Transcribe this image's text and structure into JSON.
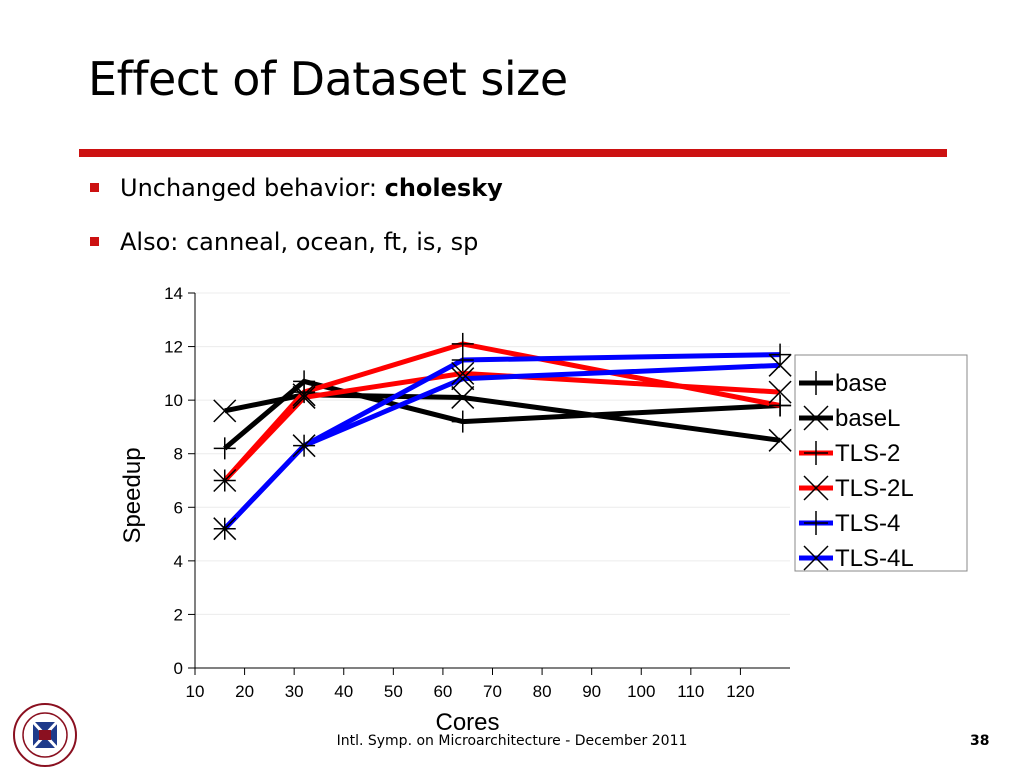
{
  "slide": {
    "title": "Effect of Dataset size",
    "bullet1_prefix": "Unchanged behavior: ",
    "bullet1_bold": "cholesky",
    "bullet2": "Also: canneal, ocean, ft, is, sp",
    "footer": "Intl. Symp. on Microarchitecture - December 2011",
    "page_number": "38",
    "colors": {
      "accent": "#cc1111",
      "black": "#000000",
      "red": "#ff0000",
      "blue": "#0000ff"
    }
  },
  "chart_data": {
    "type": "line",
    "title": "",
    "xlabel": "Cores",
    "ylabel": "Speedup",
    "xlim": [
      10,
      130
    ],
    "ylim": [
      0,
      14
    ],
    "xticks": [
      10,
      20,
      30,
      40,
      50,
      60,
      70,
      80,
      90,
      100,
      110,
      120
    ],
    "yticks": [
      0,
      2,
      4,
      6,
      8,
      10,
      12,
      14
    ],
    "grid": true,
    "legend_position": "right",
    "x": [
      16,
      32,
      64,
      128
    ],
    "series": [
      {
        "name": "base",
        "color": "#000000",
        "marker": "plus",
        "values": [
          8.2,
          10.7,
          9.2,
          9.8
        ]
      },
      {
        "name": "baseL",
        "color": "#000000",
        "marker": "cross",
        "values": [
          9.6,
          10.2,
          10.1,
          8.5
        ]
      },
      {
        "name": "TLS-2",
        "color": "#ff0000",
        "marker": "plus",
        "values": [
          7.0,
          10.3,
          12.1,
          9.8
        ]
      },
      {
        "name": "TLS-2L",
        "color": "#ff0000",
        "marker": "cross",
        "values": [
          7.0,
          10.1,
          11.0,
          10.3
        ]
      },
      {
        "name": "TLS-4",
        "color": "#0000ff",
        "marker": "plus",
        "values": [
          5.2,
          8.3,
          11.5,
          11.7
        ]
      },
      {
        "name": "TLS-4L",
        "color": "#0000ff",
        "marker": "cross",
        "values": [
          5.2,
          8.3,
          10.8,
          11.3
        ]
      }
    ]
  }
}
